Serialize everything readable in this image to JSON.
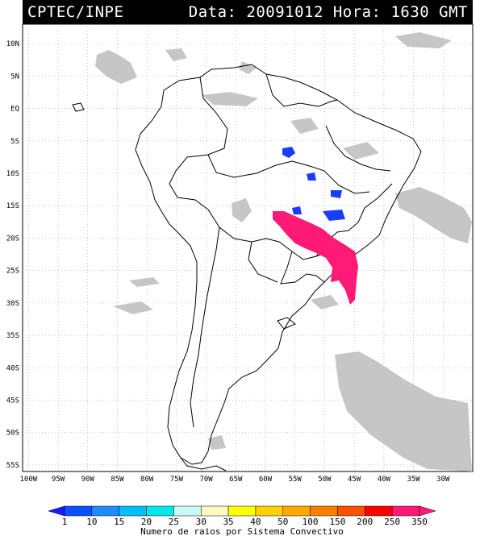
{
  "header": {
    "source": "CPTEC/INPE",
    "date_time": "Data: 20091012 Hora: 1630 GMT"
  },
  "map": {
    "lat_labels": [
      "10N",
      "5N",
      "EQ",
      "5S",
      "10S",
      "15S",
      "20S",
      "25S",
      "30S",
      "35S",
      "40S",
      "45S",
      "50S",
      "55S"
    ],
    "lon_labels": [
      "100W",
      "95W",
      "90W",
      "85W",
      "80W",
      "75W",
      "70W",
      "65W",
      "60W",
      "55W",
      "50W",
      "45W",
      "40W",
      "35W",
      "30W"
    ],
    "lat_range": [
      -56,
      13
    ],
    "lon_range": [
      -101,
      -25
    ],
    "gridlines": true,
    "cloud_color": "#c6c6c6",
    "coast_color": "#000000"
  },
  "legend": {
    "labels": [
      "1",
      "10",
      "15",
      "20",
      "25",
      "30",
      "35",
      "40",
      "50",
      "100",
      "150",
      "200",
      "250",
      "350"
    ],
    "colors": [
      "#1a1aff",
      "#0a50ff",
      "#1e8cff",
      "#00c0ff",
      "#00e8e8",
      "#c8f8f8",
      "#fff8c0",
      "#ffff00",
      "#ffd000",
      "#ffa800",
      "#ff8000",
      "#ff5000",
      "#ff0000",
      "#ff1a78",
      "#ff1a78"
    ],
    "caption": "Numero de raios por Sistema Convectivo"
  },
  "systems": {
    "convective_colors": {
      "low": "#1a3cff",
      "high": "#ff1a78"
    }
  }
}
